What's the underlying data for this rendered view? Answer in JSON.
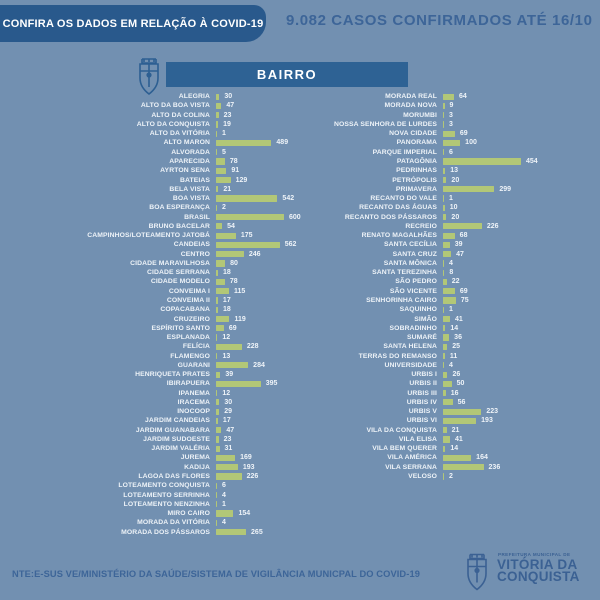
{
  "header": {
    "banner_label": "CONFIRA OS DADOS EM RELAÇÃO À COVID-19",
    "title": "9.082 CASOS CONFIRMADOS ATÉ 16/10"
  },
  "chart": {
    "group_label": "BAIRRO"
  },
  "icons": {
    "top_left_of_header_bar": "coat-of-arms-icon",
    "footer_logo": "coat-of-arms-icon"
  },
  "colors": {
    "background": "#7290b1",
    "banner": "#29598c",
    "header_bar": "#2e6294",
    "accent_text": "#3d6598",
    "bar_fill": "#b2c777",
    "label_text": "#eef3f8"
  },
  "footer": {
    "source": "NTE:E-SUS VE/MINISTÉRIO DA SAÚDE/SISTEMA DE VIGILÂNCIA MUNICPAL DO COVID-19",
    "logo": {
      "tagline": "PREFEITURA MUNICIPAL DE",
      "name_line1": "VITÓRIA DA",
      "name_line2": "CONQUISTA"
    }
  },
  "chart_data": {
    "type": "bar",
    "orientation": "horizontal",
    "title": "9.082 CASOS CONFIRMADOS ATÉ 16/10",
    "category_axis_label": "BAIRRO",
    "value_labels_shown": true,
    "grid": false,
    "legend": false,
    "columns": [
      {
        "categories": [
          "ALEGRIA",
          "ALTO DA BOA VISTA",
          "ALTO DA COLINA",
          "ALTO DA CONQUISTA",
          "ALTO DA VITÓRIA",
          "ALTO MARON",
          "ALVORADA",
          "APARECIDA",
          "AYRTON SENA",
          "BATEIAS",
          "BELA VISTA",
          "BOA VISTA",
          "BOA ESPERANÇA",
          "BRASIL",
          "BRUNO BACELAR",
          "CAMPINHOS/LOTEAMENTO JATOBÁ",
          "CANDEIAS",
          "CENTRO",
          "CIDADE MARAVILHOSA",
          "CIDADE SERRANA",
          "CIDADE MODELO",
          "CONVEIMA I",
          "CONVEIMA II",
          "COPACABANA",
          "CRUZEIRO",
          "ESPÍRITO SANTO",
          "ESPLANADA",
          "FELÍCIA",
          "FLAMENGO",
          "GUARANI",
          "HENRIQUETA PRATES",
          "IBIRAPUERA",
          "IPANEMA",
          "IRACEMA",
          "INOCOOP",
          "JARDIM CANDEIAS",
          "JARDIM GUANABARA",
          "JARDIM SUDOESTE",
          "JARDIM VALÉRIA",
          "JUREMA",
          "KADIJA",
          "LAGOA DAS FLORES",
          "LOTEAMENTO CONQUISTA",
          "LOTEAMENTO SERRINHA",
          "LOTEAMENTO NENZINHA",
          "MIRO CAIRO",
          "MORADA DA VITÓRIA",
          "MORADA DOS PÁSSAROS"
        ],
        "values": [
          30,
          47,
          23,
          19,
          1,
          489,
          5,
          78,
          91,
          129,
          21,
          542,
          2,
          600,
          54,
          175,
          562,
          246,
          80,
          18,
          78,
          115,
          17,
          18,
          119,
          69,
          12,
          228,
          13,
          284,
          39,
          395,
          12,
          30,
          29,
          17,
          47,
          23,
          31,
          169,
          193,
          226,
          6,
          4,
          1,
          154,
          4,
          265
        ]
      },
      {
        "categories": [
          "MORADA REAL",
          "MORADA NOVA",
          "MORUMBI",
          "NOSSA SENHORA DE LURDES",
          "NOVA CIDADE",
          "PANORAMA",
          "PARQUE IMPERIAL",
          "PATAGÔNIA",
          "PEDRINHAS",
          "PETRÓPOLIS",
          "PRIMAVERA",
          "RECANTO DO VALE",
          "RECANTO DAS ÁGUAS",
          "RECANTO DOS PÁSSAROS",
          "RECREIO",
          "RENATO MAGALHÃES",
          "SANTA CECÍLIA",
          "SANTA CRUZ",
          "SANTA MÔNICA",
          "SANTA TEREZINHA",
          "SÃO PEDRO",
          "SÃO VICENTE",
          "SENHORINHA CAIRO",
          "SAQUINHO",
          "SIMÃO",
          "SOBRADINHO",
          "SUMARÉ",
          "SANTA HELENA",
          "TERRAS DO REMANSO",
          "UNIVERSIDADE",
          "URBIS I",
          "URBIS II",
          "URBIS III",
          "URBIS IV",
          "URBIS V",
          "URBIS VI",
          "VILA DA CONQUISTA",
          "VILA ELISA",
          "VILA BEM QUERER",
          "VILA AMÉRICA",
          "VILA SERRANA",
          "VELOSO"
        ],
        "values": [
          64,
          9,
          3,
          3,
          69,
          100,
          6,
          454,
          13,
          20,
          299,
          1,
          10,
          20,
          226,
          68,
          39,
          47,
          4,
          8,
          22,
          69,
          75,
          1,
          41,
          14,
          36,
          25,
          11,
          4,
          26,
          50,
          16,
          56,
          223,
          193,
          21,
          41,
          14,
          164,
          236,
          2
        ]
      }
    ]
  }
}
